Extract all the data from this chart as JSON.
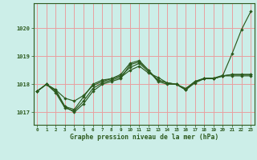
{
  "background_color": "#cceee8",
  "grid_color": "#e8a0a0",
  "line_color": "#2d5a1e",
  "marker_color": "#2d5a1e",
  "ylabel_ticks": [
    1017,
    1018,
    1019,
    1020
  ],
  "xlabel_ticks": [
    0,
    1,
    2,
    3,
    4,
    5,
    6,
    7,
    8,
    9,
    10,
    11,
    12,
    13,
    14,
    15,
    16,
    17,
    18,
    19,
    20,
    21,
    22,
    23
  ],
  "xlabel": "Graphe pression niveau de la mer (hPa)",
  "ylim": [
    1016.55,
    1020.9
  ],
  "xlim": [
    -0.4,
    23.4
  ],
  "series": [
    [
      1017.75,
      1018.0,
      1017.8,
      1017.2,
      1017.0,
      1017.3,
      1017.75,
      1018.0,
      1018.1,
      1018.2,
      1018.7,
      1018.8,
      1018.5,
      1018.1,
      1018.0,
      1018.0,
      1017.8,
      1018.1,
      1018.2,
      1018.2,
      1018.3,
      1018.35,
      1018.35,
      1018.35
    ],
    [
      1017.75,
      1018.0,
      1017.7,
      1017.15,
      1017.05,
      1017.4,
      1017.85,
      1018.05,
      1018.15,
      1018.25,
      1018.5,
      1018.65,
      1018.4,
      1018.25,
      1018.05,
      1018.0,
      1017.8,
      1018.05,
      1018.2,
      1018.2,
      1018.3,
      1018.3,
      1018.3,
      1018.3
    ],
    [
      1017.75,
      1018.0,
      1017.8,
      1017.5,
      1017.4,
      1017.6,
      1017.95,
      1018.1,
      1018.2,
      1018.3,
      1018.6,
      1018.75,
      1018.45,
      1018.15,
      1018.05,
      1018.0,
      1017.85,
      1018.1,
      1018.2,
      1018.2,
      1018.3,
      1018.35,
      1018.35,
      1018.35
    ],
    [
      1017.75,
      1018.0,
      1017.75,
      1017.2,
      1017.1,
      1017.55,
      1018.0,
      1018.15,
      1018.2,
      1018.35,
      1018.75,
      1018.85,
      1018.5,
      1018.15,
      1018.05,
      1018.0,
      1017.82,
      1018.1,
      1018.22,
      1018.22,
      1018.32,
      1019.1,
      1019.95,
      1020.6
    ]
  ]
}
